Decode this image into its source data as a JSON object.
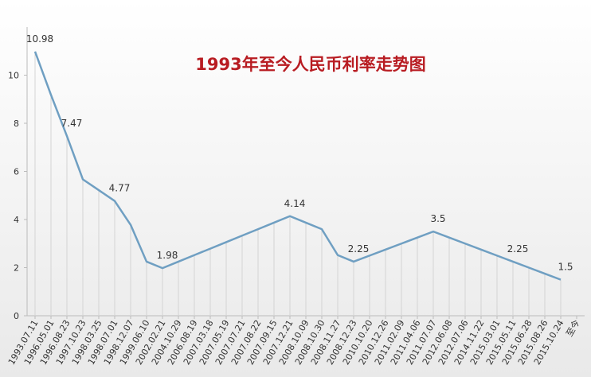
{
  "chart_data": {
    "type": "line",
    "title": "1993年至今人民币利率走势图",
    "categories": [
      "1993.07.11",
      "1996.05.01",
      "1996.08.23",
      "1997.10.23",
      "1998.03.25",
      "1998.07.01",
      "1998.12.07",
      "1999.06.10",
      "2002.02.21",
      "2004.10.29",
      "2006.08.19",
      "2007.03.18",
      "2007.05.19",
      "2007.07.21",
      "2007.08.22",
      "2007.09.15",
      "2007.12.21",
      "2008.10.09",
      "2008.10.30",
      "2008.11.27",
      "2008.12.23",
      "2010.10.20",
      "2010.12.26",
      "2011.02.09",
      "2011.04.06",
      "2011.07.07",
      "2012.06.08",
      "2012.07.06",
      "2014.11.22",
      "2015.03.01",
      "2015.05.11",
      "2015.06.28",
      "2015.08.26",
      "2015.10.24",
      "至今"
    ],
    "series": [
      {
        "color": "#6f9fc2",
        "values": [
          10.98,
          9.18,
          7.47,
          5.67,
          5.22,
          4.77,
          3.78,
          2.25,
          1.98,
          2.25,
          2.52,
          2.79,
          3.06,
          3.33,
          3.6,
          3.87,
          4.14,
          3.87,
          3.6,
          2.52,
          2.25,
          2.5,
          2.75,
          3,
          3.25,
          3.5,
          3.25,
          3,
          2.75,
          2.5,
          2.25,
          2,
          1.75,
          1.5,
          null
        ],
        "value_labels": [
          "10.98",
          null,
          "7.47",
          null,
          null,
          "4.77",
          null,
          null,
          "1.98",
          null,
          null,
          null,
          null,
          null,
          null,
          null,
          "4.14",
          null,
          null,
          null,
          "2.25",
          null,
          null,
          null,
          null,
          "3.5",
          null,
          null,
          null,
          null,
          "2.25",
          null,
          null,
          "1.5",
          null
        ]
      }
    ],
    "ylim": [
      0,
      12
    ],
    "yticks": [
      0,
      2,
      4,
      6,
      8,
      10
    ],
    "drop_lines": true
  }
}
